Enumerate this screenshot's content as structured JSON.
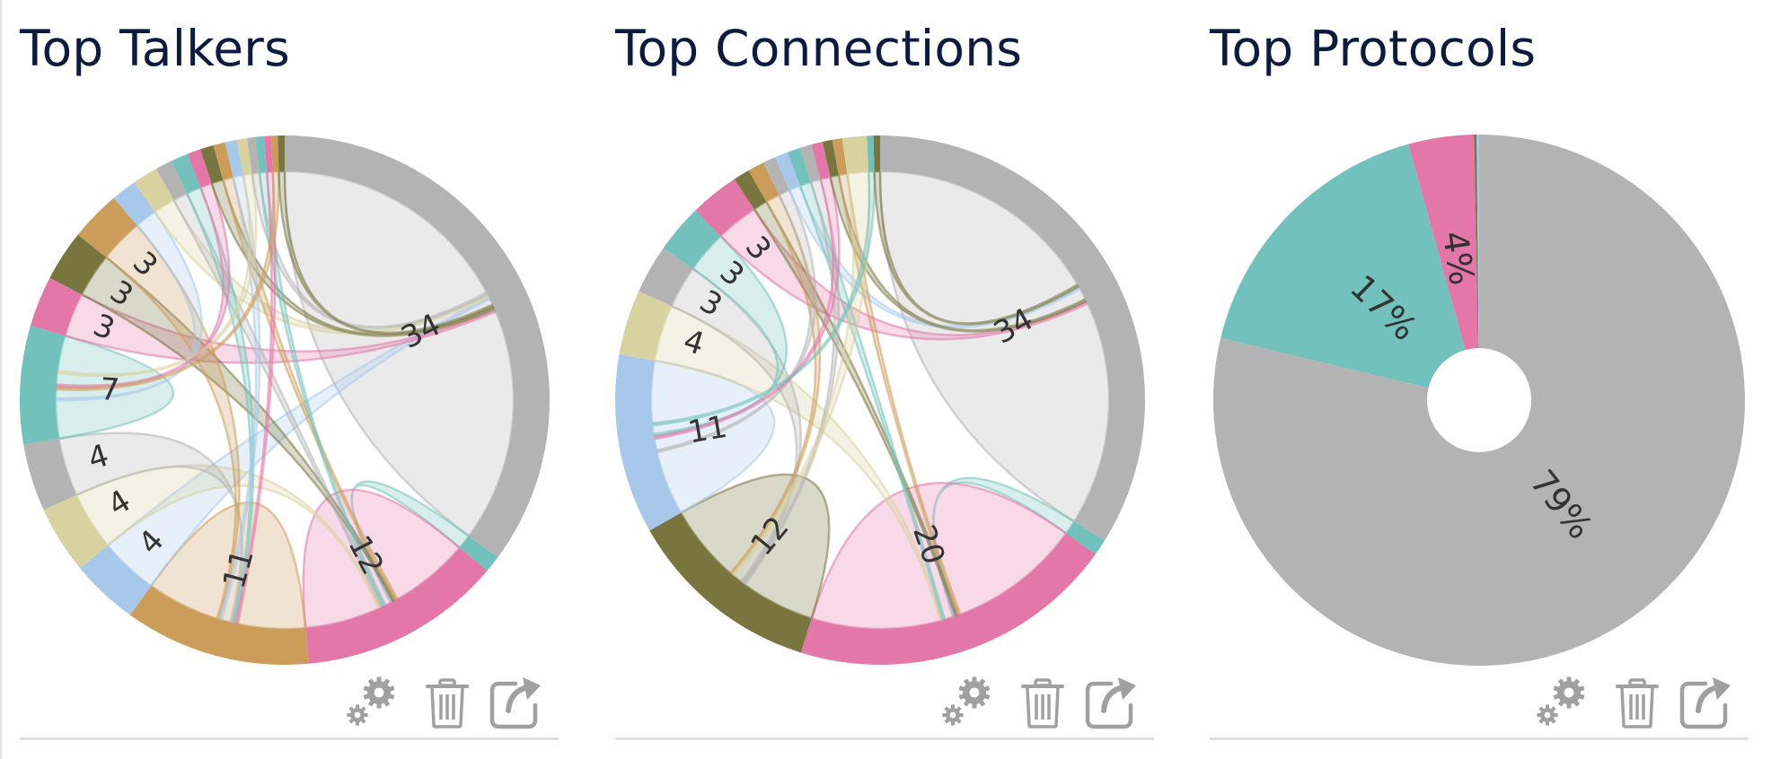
{
  "colors": {
    "gray": "#b3b3b3",
    "teal": "#72c1bc",
    "pink": "#e277a8",
    "orange": "#cc9c5b",
    "olive": "#78753f",
    "khaki": "#d8d2a1",
    "blue": "#a8c8ea",
    "title": "#0d1b3e",
    "icon": "#a0a0a0"
  },
  "toolbar_actions": [
    {
      "name": "settings",
      "icon": "gears-icon"
    },
    {
      "name": "delete",
      "icon": "trash-icon"
    },
    {
      "name": "pop-out",
      "icon": "external-link-icon"
    }
  ],
  "widgets": [
    {
      "title": "Top Talkers",
      "chart_data": {
        "type": "chord",
        "title": "Top Talkers",
        "groups": [
          {
            "color": "gray",
            "value": 34,
            "label": "34"
          },
          {
            "color": "teal",
            "value": 1
          },
          {
            "color": "pink",
            "value": 12,
            "label": "12"
          },
          {
            "color": "orange",
            "value": 11,
            "label": "11"
          },
          {
            "color": "blue",
            "value": 4,
            "label": "4"
          },
          {
            "color": "khaki",
            "value": 4,
            "label": "4"
          },
          {
            "color": "gray",
            "value": 4,
            "label": "4"
          },
          {
            "color": "teal",
            "value": 7,
            "label": "7"
          },
          {
            "color": "pink",
            "value": 3,
            "label": "3"
          },
          {
            "color": "olive",
            "value": 3,
            "label": "3"
          },
          {
            "color": "orange",
            "value": 3,
            "label": "3"
          },
          {
            "color": "blue",
            "value": 1.5
          },
          {
            "color": "khaki",
            "value": 1.5
          },
          {
            "color": "gray",
            "value": 1
          },
          {
            "color": "teal",
            "value": 1
          },
          {
            "color": "pink",
            "value": 0.8
          },
          {
            "color": "olive",
            "value": 0.8
          },
          {
            "color": "orange",
            "value": 0.7
          },
          {
            "color": "blue",
            "value": 0.7
          },
          {
            "color": "khaki",
            "value": 0.6
          },
          {
            "color": "gray",
            "value": 0.5
          },
          {
            "color": "teal",
            "value": 0.5
          },
          {
            "color": "pink",
            "value": 0.4
          },
          {
            "color": "orange",
            "value": 0.4
          },
          {
            "color": "olive",
            "value": 0.4
          }
        ]
      }
    },
    {
      "title": "Top Connections",
      "chart_data": {
        "type": "chord",
        "title": "Top Connections",
        "groups": [
          {
            "color": "gray",
            "value": 34,
            "label": "34"
          },
          {
            "color": "teal",
            "value": 1
          },
          {
            "color": "pink",
            "value": 20,
            "label": "20"
          },
          {
            "color": "olive",
            "value": 12,
            "label": "12"
          },
          {
            "color": "blue",
            "value": 11,
            "label": "11"
          },
          {
            "color": "khaki",
            "value": 4,
            "label": "4"
          },
          {
            "color": "gray",
            "value": 3,
            "label": "3"
          },
          {
            "color": "teal",
            "value": 3,
            "label": "3"
          },
          {
            "color": "pink",
            "value": 3,
            "label": "3"
          },
          {
            "color": "olive",
            "value": 1
          },
          {
            "color": "orange",
            "value": 1
          },
          {
            "color": "gray",
            "value": 0.8
          },
          {
            "color": "blue",
            "value": 0.8
          },
          {
            "color": "teal",
            "value": 0.8
          },
          {
            "color": "gray",
            "value": 0.7
          },
          {
            "color": "pink",
            "value": 0.7
          },
          {
            "color": "olive",
            "value": 0.6
          },
          {
            "color": "orange",
            "value": 0.6
          },
          {
            "color": "khaki",
            "value": 1.5
          },
          {
            "color": "teal",
            "value": 0.4
          },
          {
            "color": "olive",
            "value": 0.4
          }
        ]
      }
    },
    {
      "title": "Top Protocols",
      "chart_data": {
        "type": "pie",
        "title": "Top Protocols",
        "slices": [
          {
            "color": "gray",
            "value": 79,
            "label": "79%"
          },
          {
            "color": "teal",
            "value": 17,
            "label": "17%"
          },
          {
            "color": "pink",
            "value": 4,
            "label": "4%"
          },
          {
            "color": "olive",
            "value": 0.15
          },
          {
            "color": "blue",
            "value": 0.15
          }
        ]
      }
    }
  ]
}
